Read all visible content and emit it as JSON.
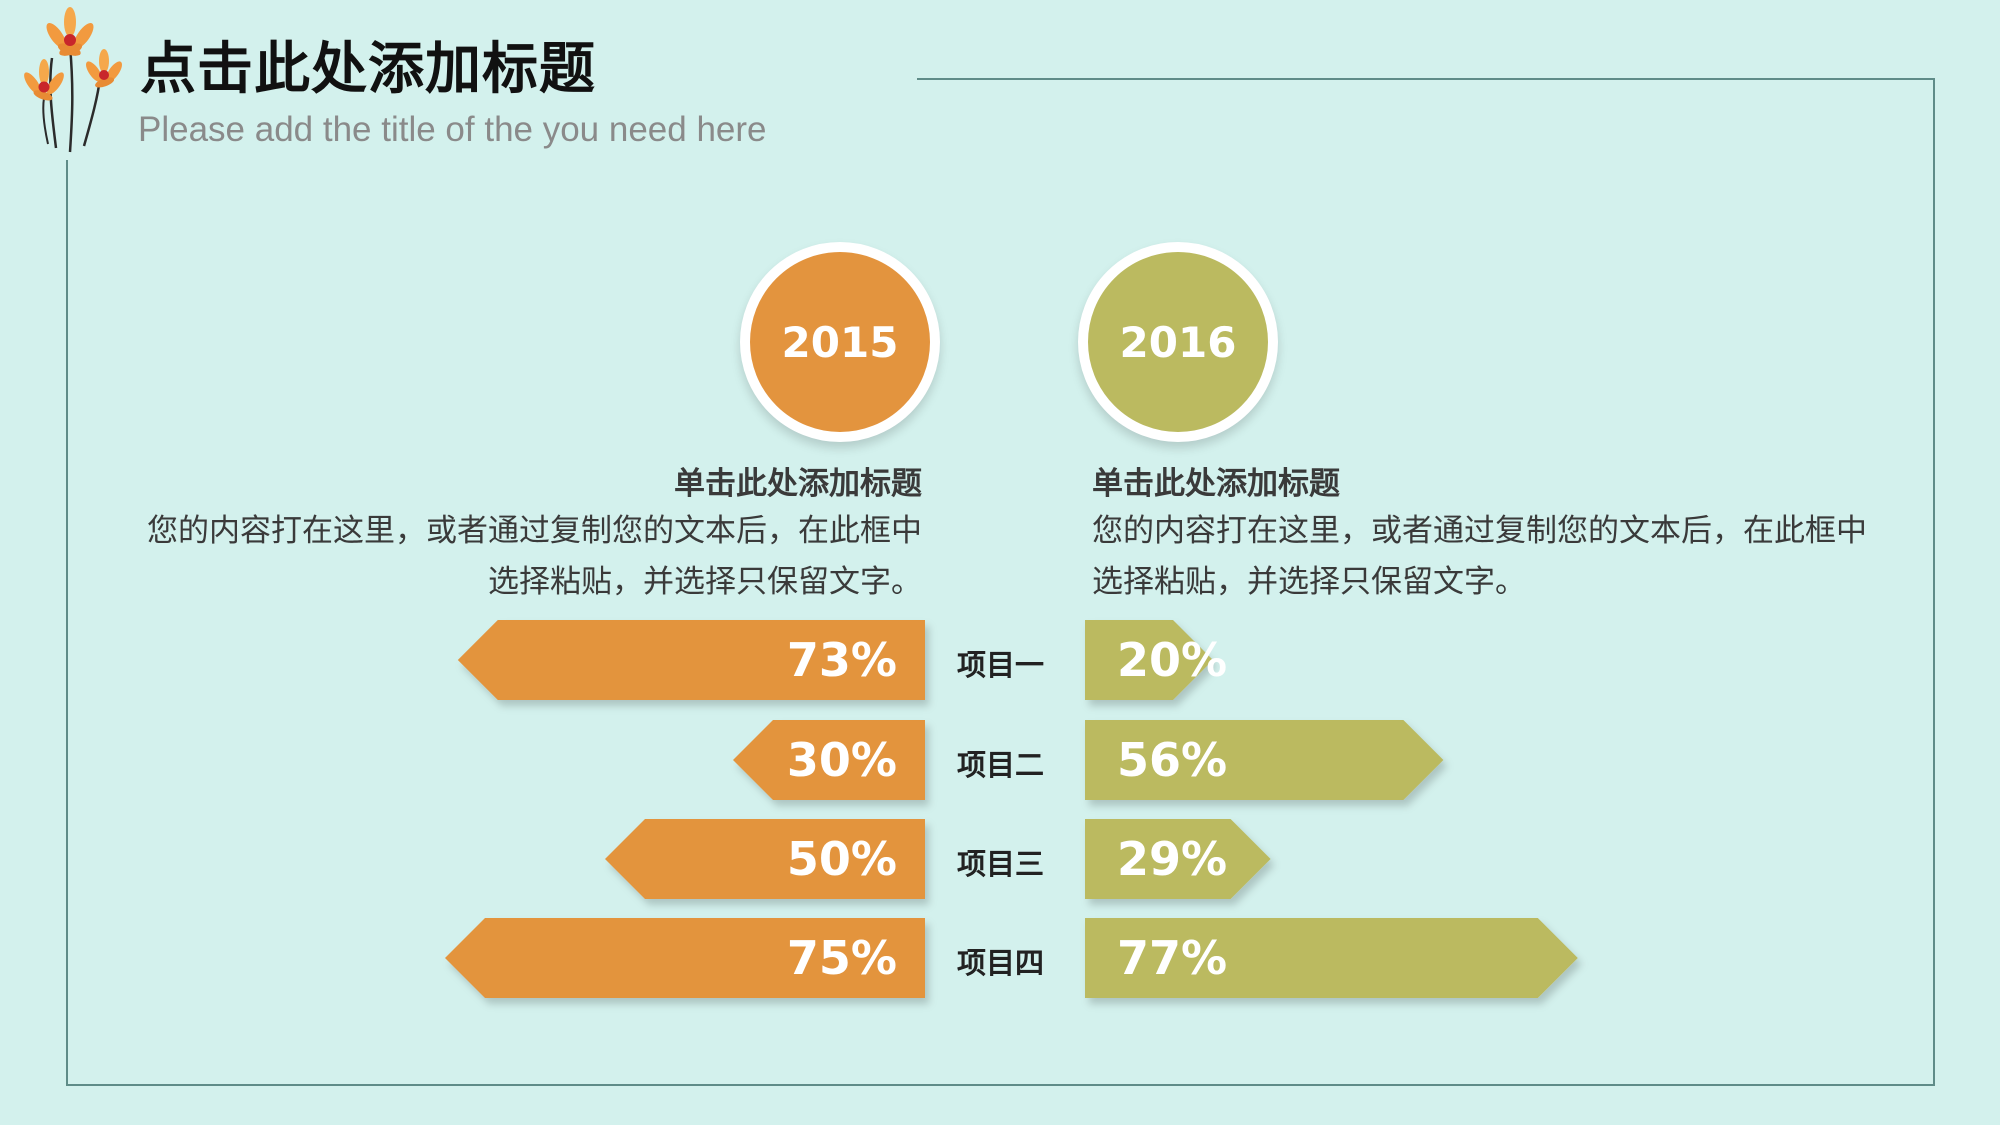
{
  "header": {
    "title": "点击此处添加标题",
    "subtitle": "Please add the title of the you need here"
  },
  "years": {
    "left": "2015",
    "right": "2016"
  },
  "descriptions": {
    "left": {
      "heading": "单击此处添加标题",
      "body": "您的内容打在这里，或者通过复制您的文本后，在此框中选择粘贴，并选择只保留文字。"
    },
    "right": {
      "heading": "单击此处添加标题",
      "body": "您的内容打在这里，或者通过复制您的文本后，在此框中选择粘贴，并选择只保留文字。"
    }
  },
  "colors": {
    "background": "#d3f1ed",
    "orange": "#e3943e",
    "olive": "#bbba60"
  },
  "chart_data": {
    "type": "bar",
    "categories": [
      "项目一",
      "项目二",
      "项目三",
      "项目四"
    ],
    "series": [
      {
        "name": "2015",
        "values": [
          73,
          30,
          50,
          75
        ],
        "labels": [
          "73%",
          "30%",
          "50%",
          "75%"
        ],
        "color": "#e3943e",
        "direction": "left"
      },
      {
        "name": "2016",
        "values": [
          20,
          56,
          29,
          77
        ],
        "labels": [
          "20%",
          "56%",
          "29%",
          "77%"
        ],
        "color": "#bbba60",
        "direction": "right"
      }
    ],
    "ylim": [
      0,
      100
    ]
  }
}
